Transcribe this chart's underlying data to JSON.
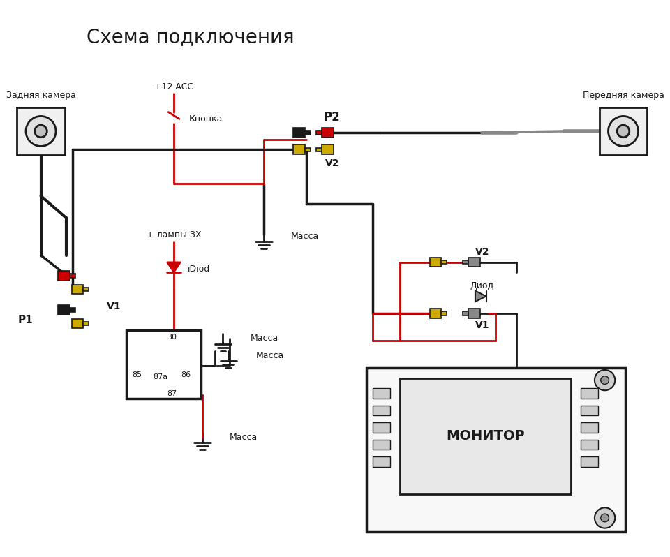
{
  "title": "Схема подключения",
  "bg_color": "#ffffff",
  "text_color": "#000000",
  "red_color": "#cc0000",
  "black_color": "#1a1a1a",
  "yellow_color": "#ccaa00",
  "gray_color": "#888888",
  "labels": {
    "title": "Схема подключения",
    "rear_cam": "Задняя камера",
    "front_cam": "Передняя камера",
    "p1": "P1",
    "p2": "P2",
    "v1_left": "V1",
    "v2_left": "V2",
    "v1_right": "V1",
    "v2_right": "V2",
    "massa1": "Масса",
    "massa2": "Масса",
    "massa3": "Масса",
    "plus12": "+12 ACC",
    "knopka": "Кнопка",
    "plus_lampy": "+ лампы ЗХ",
    "idiod": "iDiod",
    "diod": "Диод",
    "monitor": "МОНИТОР",
    "r30": "30",
    "r85": "85",
    "r87a": "87а",
    "r86": "86",
    "r87": "87"
  }
}
